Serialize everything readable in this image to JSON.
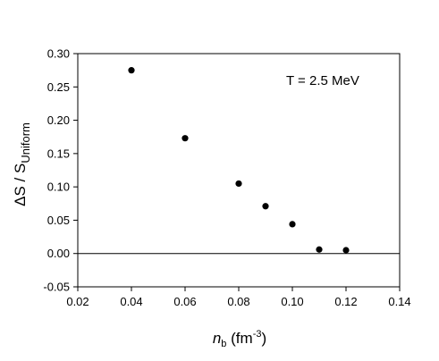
{
  "chart_data": {
    "type": "scatter",
    "title": "",
    "annotation": "T = 2.5 MeV",
    "xlabel": {
      "symbol": "n",
      "subscript": "b",
      "unit_open": " (fm",
      "unit_power": "-3",
      "unit_close": ")"
    },
    "ylabel": {
      "prefix": "ΔS / S",
      "subscript": "Uniform"
    },
    "xlim": [
      0.02,
      0.14
    ],
    "ylim": [
      -0.05,
      0.3
    ],
    "x_ticks": [
      "0.02",
      "0.04",
      "0.06",
      "0.08",
      "0.10",
      "0.12",
      "0.14"
    ],
    "y_ticks": [
      "-0.05",
      "0.00",
      "0.05",
      "0.10",
      "0.15",
      "0.20",
      "0.25",
      "0.30"
    ],
    "reference_line": 0.0,
    "grid": false,
    "legend": "none",
    "x": [
      0.04,
      0.06,
      0.08,
      0.09,
      0.1,
      0.11,
      0.12
    ],
    "y": [
      0.275,
      0.173,
      0.105,
      0.071,
      0.044,
      0.006,
      0.005
    ],
    "marker_color": "#000000"
  }
}
